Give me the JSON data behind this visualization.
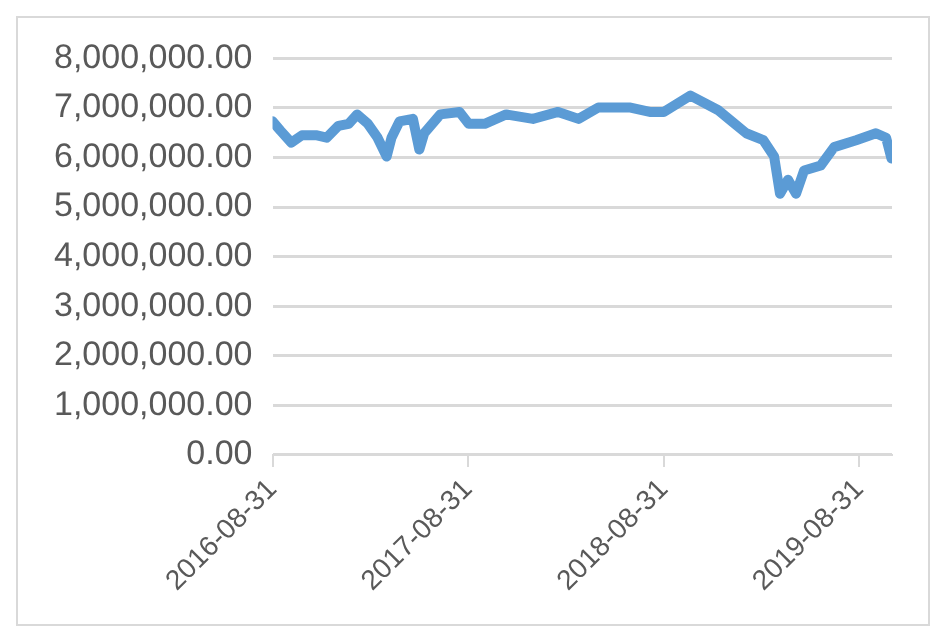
{
  "chart_data": {
    "type": "line",
    "x": [
      "2016-08-31",
      "2016-09-15",
      "2016-10-05",
      "2016-10-25",
      "2016-11-20",
      "2016-12-10",
      "2017-01-01",
      "2017-01-20",
      "2017-02-05",
      "2017-02-25",
      "2017-03-15",
      "2017-04-01",
      "2017-04-10",
      "2017-04-25",
      "2017-05-20",
      "2017-06-01",
      "2017-06-10",
      "2017-07-10",
      "2017-08-15",
      "2017-09-01",
      "2017-10-01",
      "2017-11-10",
      "2017-12-30",
      "2018-02-15",
      "2018-03-25",
      "2018-05-01",
      "2018-06-28",
      "2018-08-05",
      "2018-08-31",
      "2018-10-20",
      "2018-12-10",
      "2019-01-05",
      "2019-02-01",
      "2019-03-05",
      "2019-03-25",
      "2019-04-05",
      "2019-04-20",
      "2019-05-05",
      "2019-05-20",
      "2019-06-20",
      "2019-07-15",
      "2019-08-25",
      "2019-10-01",
      "2019-10-20",
      "2019-10-30"
    ],
    "series": [
      {
        "color": "#5b9bd5",
        "values": [
          6730000,
          6540000,
          6300000,
          6450000,
          6450000,
          6400000,
          6640000,
          6680000,
          6870000,
          6680000,
          6400000,
          6020000,
          6400000,
          6730000,
          6780000,
          6160000,
          6490000,
          6870000,
          6920000,
          6680000,
          6680000,
          6870000,
          6780000,
          6920000,
          6780000,
          7010000,
          7010000,
          6920000,
          6920000,
          7250000,
          6960000,
          6730000,
          6490000,
          6350000,
          6020000,
          5270000,
          5550000,
          5270000,
          5740000,
          5840000,
          6210000,
          6350000,
          6490000,
          6400000,
          5980000
        ]
      }
    ],
    "xlim": [
      "2016-08-31",
      "2019-10-31"
    ],
    "xticks": [
      "2016-08-31",
      "2017-08-31",
      "2018-08-31",
      "2019-08-31"
    ],
    "ylim": [
      0,
      8000000
    ],
    "yticks": [
      {
        "value": 0,
        "label": "0.00"
      },
      {
        "value": 1000000,
        "label": "1,000,000.00"
      },
      {
        "value": 2000000,
        "label": "2,000,000.00"
      },
      {
        "value": 3000000,
        "label": "3,000,000.00"
      },
      {
        "value": 4000000,
        "label": "4,000,000.00"
      },
      {
        "value": 5000000,
        "label": "5,000,000.00"
      },
      {
        "value": 6000000,
        "label": "6,000,000.00"
      },
      {
        "value": 7000000,
        "label": "7,000,000.00"
      },
      {
        "value": 8000000,
        "label": "8,000,000.00"
      }
    ],
    "grid": "y",
    "legend": false,
    "marker": "none",
    "line_style": "solid"
  }
}
